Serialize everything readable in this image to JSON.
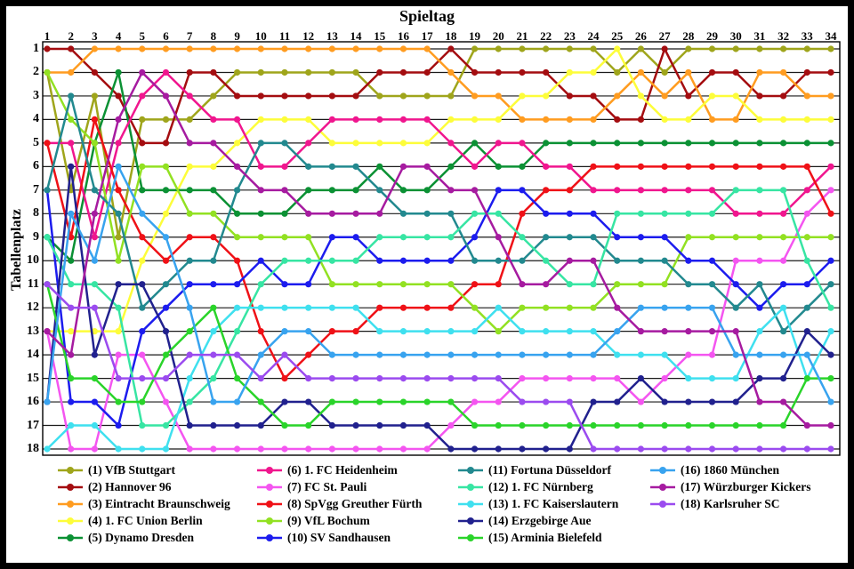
{
  "chart": {
    "title": "Spieltag",
    "ylabel": "Tabellenplatz"
  },
  "chart_data": {
    "type": "line",
    "title": "Spieltag",
    "xlabel": "Spieltag",
    "ylabel": "Tabellenplatz",
    "x_ticks": [
      1,
      2,
      3,
      4,
      5,
      6,
      7,
      8,
      9,
      10,
      11,
      12,
      13,
      14,
      15,
      16,
      17,
      18,
      19,
      20,
      21,
      22,
      23,
      24,
      25,
      26,
      27,
      28,
      29,
      30,
      31,
      32,
      33,
      34
    ],
    "y_ticks": [
      1,
      2,
      3,
      4,
      5,
      6,
      7,
      8,
      9,
      10,
      11,
      12,
      13,
      14,
      15,
      16,
      17,
      18
    ],
    "xlim": [
      1,
      34
    ],
    "ylim": [
      1,
      18
    ],
    "y_inverted": true,
    "grid": "horizontal",
    "legend_position": "bottom",
    "legend_columns": [
      5,
      5,
      5,
      3
    ],
    "series": [
      {
        "rank": 1,
        "name": "VfB Stuttgart",
        "label": "(1) VfB Stuttgart",
        "color": "#9fa51b",
        "values": [
          2,
          7,
          3,
          9,
          4,
          4,
          4,
          3,
          2,
          2,
          2,
          2,
          2,
          2,
          3,
          3,
          3,
          3,
          1,
          1,
          1,
          1,
          1,
          1,
          2,
          1,
          2,
          1,
          1,
          1,
          1,
          1,
          1,
          1
        ]
      },
      {
        "rank": 2,
        "name": "Hannover 96",
        "label": "(2) Hannover 96",
        "color": "#a40d10",
        "values": [
          1,
          1,
          2,
          3,
          5,
          5,
          2,
          2,
          3,
          3,
          3,
          3,
          3,
          3,
          2,
          2,
          2,
          1,
          2,
          2,
          2,
          2,
          3,
          3,
          4,
          4,
          1,
          3,
          2,
          2,
          3,
          3,
          2,
          2
        ]
      },
      {
        "rank": 3,
        "name": "Eintracht Braunschweig",
        "label": "(3) Eintracht Braunschweig",
        "color": "#ff9c20",
        "values": [
          2,
          2,
          1,
          1,
          1,
          1,
          1,
          1,
          1,
          1,
          1,
          1,
          1,
          1,
          1,
          1,
          1,
          2,
          3,
          3,
          4,
          4,
          4,
          4,
          3,
          2,
          3,
          2,
          4,
          4,
          2,
          2,
          3,
          3
        ]
      },
      {
        "rank": 4,
        "name": "1. FC Union Berlin",
        "label": "(4) 1. FC Union Berlin",
        "color": "#fdfd3a",
        "values": [
          13,
          13,
          13,
          13,
          10,
          8,
          6,
          6,
          5,
          4,
          4,
          4,
          5,
          5,
          5,
          5,
          5,
          4,
          4,
          4,
          3,
          3,
          2,
          2,
          1,
          3,
          4,
          4,
          3,
          3,
          4,
          4,
          4,
          4
        ]
      },
      {
        "rank": 5,
        "name": "Dynamo Dresden",
        "label": "(5) Dynamo Dresden",
        "color": "#0b9134",
        "values": [
          9,
          10,
          5,
          2,
          7,
          7,
          7,
          7,
          8,
          8,
          8,
          7,
          7,
          7,
          6,
          7,
          7,
          6,
          5,
          6,
          6,
          5,
          5,
          5,
          5,
          5,
          5,
          5,
          5,
          5,
          5,
          5,
          5,
          5
        ]
      },
      {
        "rank": 6,
        "name": "1. FC Heidenheim",
        "label": "(6) 1. FC Heidenheim",
        "color": "#f0168e",
        "values": [
          5,
          5,
          9,
          5,
          3,
          2,
          3,
          4,
          4,
          6,
          6,
          5,
          4,
          4,
          4,
          4,
          4,
          5,
          6,
          5,
          5,
          6,
          6,
          7,
          7,
          7,
          7,
          7,
          7,
          8,
          8,
          8,
          7,
          6
        ]
      },
      {
        "rank": 7,
        "name": "FC St. Pauli",
        "label": "(7) FC St. Pauli",
        "color": "#f455f0",
        "values": [
          13,
          18,
          18,
          14,
          14,
          16,
          18,
          18,
          18,
          18,
          18,
          18,
          18,
          18,
          18,
          18,
          18,
          17,
          16,
          16,
          15,
          15,
          15,
          15,
          15,
          16,
          15,
          14,
          14,
          10,
          10,
          10,
          8,
          7
        ]
      },
      {
        "rank": 8,
        "name": "SpVgg Greuther Fürth",
        "label": "(8) SpVgg Greuther Fürth",
        "color": "#ef1117",
        "values": [
          5,
          9,
          4,
          7,
          9,
          10,
          9,
          9,
          10,
          13,
          15,
          14,
          13,
          13,
          12,
          12,
          12,
          12,
          11,
          11,
          8,
          7,
          7,
          6,
          6,
          6,
          6,
          6,
          6,
          6,
          6,
          6,
          6,
          8
        ]
      },
      {
        "rank": 9,
        "name": "VfL Bochum",
        "label": "(9) VfL Bochum",
        "color": "#92e122",
        "values": [
          2,
          4,
          5,
          10,
          6,
          6,
          8,
          8,
          9,
          9,
          9,
          9,
          11,
          11,
          11,
          11,
          11,
          11,
          12,
          13,
          12,
          12,
          12,
          12,
          11,
          11,
          11,
          9,
          9,
          9,
          9,
          9,
          9,
          9
        ]
      },
      {
        "rank": 10,
        "name": "SV Sandhausen",
        "label": "(10) SV Sandhausen",
        "color": "#1c1cee",
        "values": [
          7,
          16,
          16,
          17,
          13,
          12,
          11,
          11,
          11,
          10,
          11,
          11,
          9,
          9,
          10,
          10,
          10,
          10,
          9,
          7,
          7,
          8,
          8,
          8,
          9,
          9,
          9,
          10,
          10,
          11,
          12,
          11,
          11,
          10
        ]
      },
      {
        "rank": 11,
        "name": "Fortuna Düsseldorf",
        "label": "(11) Fortuna Düsseldorf",
        "color": "#22898f",
        "values": [
          7,
          3,
          7,
          8,
          12,
          11,
          10,
          10,
          7,
          5,
          5,
          6,
          6,
          6,
          7,
          8,
          8,
          8,
          10,
          10,
          10,
          9,
          9,
          9,
          10,
          10,
          10,
          11,
          11,
          12,
          11,
          13,
          12,
          11
        ]
      },
      {
        "rank": 12,
        "name": "1. FC Nürnberg",
        "label": "(12) 1. FC Nürnberg",
        "color": "#37e5a3",
        "values": [
          9,
          11,
          11,
          12,
          17,
          17,
          16,
          15,
          13,
          11,
          10,
          10,
          10,
          10,
          9,
          9,
          9,
          9,
          8,
          8,
          9,
          10,
          11,
          11,
          8,
          8,
          8,
          8,
          8,
          7,
          7,
          7,
          10,
          12
        ]
      },
      {
        "rank": 13,
        "name": "1. FC Kaiserslautern",
        "label": "(13) 1. FC Kaiserslautern",
        "color": "#3fe0ef",
        "values": [
          18,
          17,
          17,
          18,
          18,
          18,
          15,
          13,
          12,
          12,
          12,
          12,
          12,
          12,
          13,
          13,
          13,
          13,
          13,
          12,
          13,
          13,
          13,
          13,
          14,
          14,
          14,
          15,
          15,
          15,
          13,
          12,
          15,
          13
        ]
      },
      {
        "rank": 14,
        "name": "Erzgebirge Aue",
        "label": "(14) Erzgebirge Aue",
        "color": "#21218e",
        "values": [
          16,
          6,
          14,
          11,
          11,
          13,
          17,
          17,
          17,
          17,
          16,
          16,
          17,
          17,
          17,
          17,
          17,
          18,
          18,
          18,
          18,
          18,
          18,
          16,
          16,
          15,
          16,
          16,
          16,
          16,
          15,
          15,
          13,
          14
        ]
      },
      {
        "rank": 15,
        "name": "Arminia Bielefeld",
        "label": "(15) Arminia Bielefeld",
        "color": "#2ad42a",
        "values": [
          11,
          15,
          15,
          16,
          16,
          14,
          13,
          12,
          15,
          16,
          17,
          17,
          16,
          16,
          16,
          16,
          16,
          16,
          17,
          17,
          17,
          17,
          17,
          17,
          17,
          17,
          17,
          17,
          17,
          17,
          17,
          17,
          15,
          15
        ]
      },
      {
        "rank": 16,
        "name": "1860 München",
        "label": "(16) 1860 München",
        "color": "#38a3ef",
        "values": [
          16,
          8,
          10,
          6,
          8,
          9,
          12,
          16,
          16,
          14,
          13,
          13,
          14,
          14,
          14,
          14,
          14,
          14,
          14,
          14,
          14,
          14,
          14,
          14,
          13,
          12,
          12,
          12,
          12,
          14,
          14,
          14,
          14,
          16
        ]
      },
      {
        "rank": 17,
        "name": "Würzburger Kickers",
        "label": "(17) Würzburger Kickers",
        "color": "#a61ba0",
        "values": [
          13,
          14,
          8,
          4,
          2,
          3,
          5,
          5,
          6,
          7,
          7,
          8,
          8,
          8,
          8,
          6,
          6,
          7,
          7,
          9,
          11,
          11,
          10,
          10,
          12,
          13,
          13,
          13,
          13,
          13,
          16,
          16,
          17,
          17
        ]
      },
      {
        "rank": 18,
        "name": "Karlsruher SC",
        "label": "(18) Karlsruher SC",
        "color": "#9b4bef",
        "values": [
          11,
          12,
          12,
          15,
          15,
          15,
          14,
          14,
          14,
          15,
          14,
          15,
          15,
          15,
          15,
          15,
          15,
          15,
          15,
          15,
          16,
          16,
          16,
          18,
          18,
          18,
          18,
          18,
          18,
          18,
          18,
          18,
          18,
          18
        ]
      }
    ]
  }
}
